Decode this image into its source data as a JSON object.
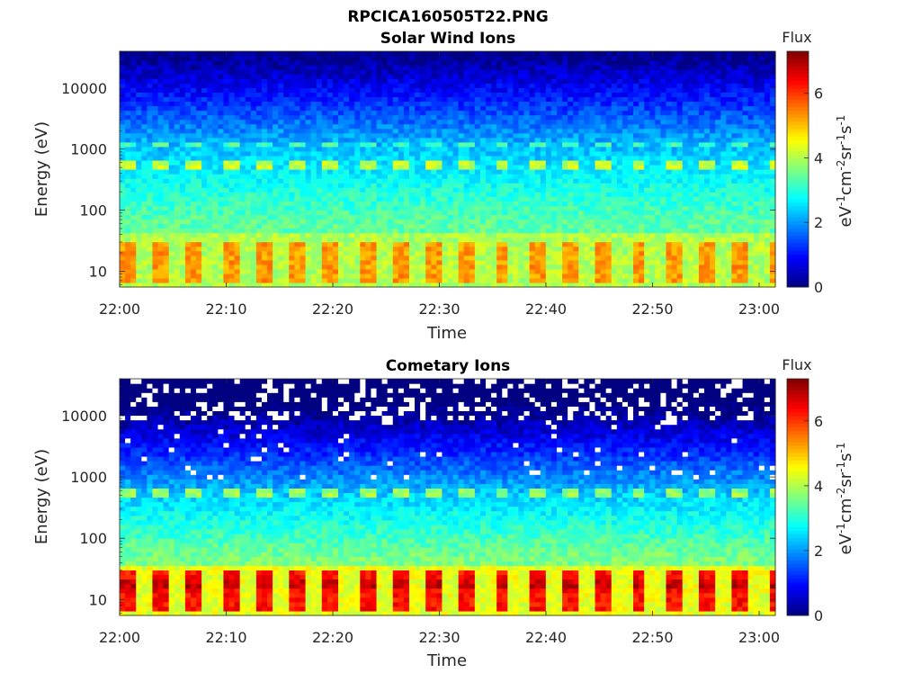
{
  "chart_data": [
    {
      "type": "heatmap",
      "title_line1": "RPCICA160505T22.PNG",
      "title": "Solar Wind Ions",
      "xlabel": "Time",
      "ylabel": "Energy (eV)",
      "x_ticks": [
        "22:00",
        "22:10",
        "22:20",
        "22:30",
        "22:40",
        "22:50",
        "23:00"
      ],
      "y_ticks": [
        "10",
        "100",
        "1000",
        "10000"
      ],
      "y_scale": "log",
      "ylim": [
        5.5,
        40000
      ],
      "colorbar": {
        "title": "Flux",
        "label": "eV-1cm-2sr-1s-1",
        "ticks": [
          "0",
          "2",
          "4",
          "6"
        ],
        "range": [
          0,
          7.3
        ],
        "colormap": "jet"
      },
      "features": [
        {
          "energy_eV": 15,
          "flux": 4.7,
          "description": "bright periodic band 8-30 eV"
        },
        {
          "energy_eV": 550,
          "flux": 4.3,
          "description": "proton band"
        },
        {
          "energy_eV": 1150,
          "flux": 3.5,
          "description": "alpha band"
        },
        {
          "energy_eV": 20000,
          "flux": 0.9,
          "description": "high-energy background"
        }
      ],
      "period_minutes": 3.2
    },
    {
      "type": "heatmap",
      "title": "Cometary Ions",
      "xlabel": "Time",
      "ylabel": "Energy (eV)",
      "x_ticks": [
        "22:00",
        "22:10",
        "22:20",
        "22:30",
        "22:40",
        "22:50",
        "23:00"
      ],
      "y_ticks": [
        "10",
        "100",
        "1000",
        "10000"
      ],
      "y_scale": "log",
      "ylim": [
        5.5,
        40000
      ],
      "colorbar": {
        "title": "Flux",
        "label": "eV-1cm-2sr-1s-1",
        "ticks": [
          "0",
          "2",
          "4",
          "6"
        ],
        "range": [
          0,
          7.3
        ],
        "colormap": "jet"
      },
      "features": [
        {
          "energy_eV": 15,
          "flux": 5.6,
          "description": "intense periodic band 8-30 eV"
        },
        {
          "energy_eV": 550,
          "flux": 3.2,
          "description": "band"
        },
        {
          "energy_eV": 20000,
          "flux": 0.3,
          "description": "sparse high-energy background with gaps"
        }
      ],
      "period_minutes": 3.2
    }
  ]
}
